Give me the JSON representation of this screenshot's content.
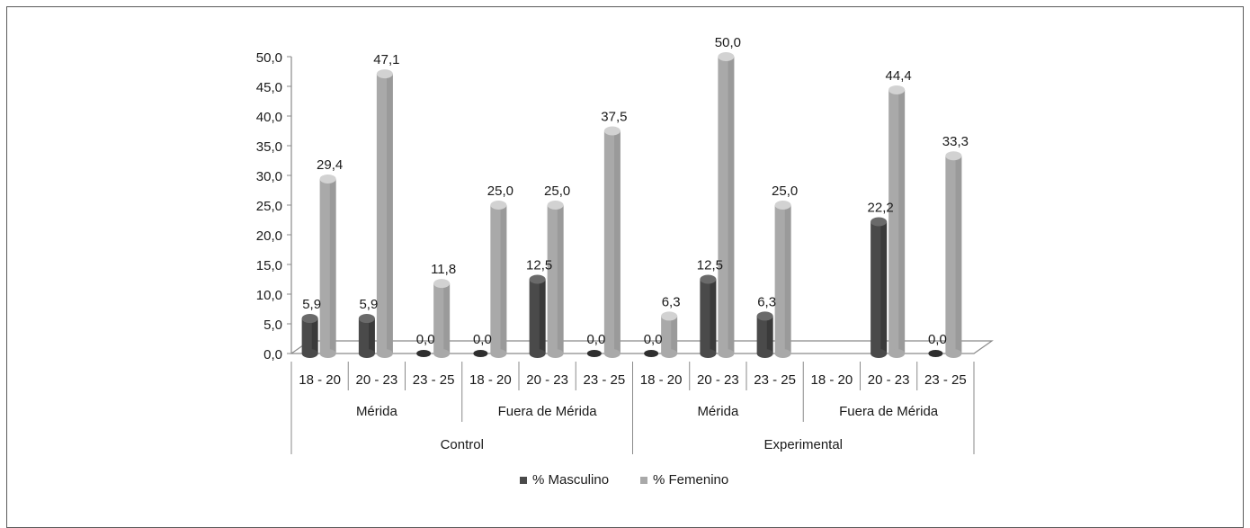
{
  "chart_data": {
    "type": "bar",
    "title": "",
    "xlabel": "",
    "ylabel": "",
    "ylim": [
      0,
      50
    ],
    "y_ticks": [
      "0,0",
      "5,0",
      "10,0",
      "15,0",
      "20,0",
      "25,0",
      "30,0",
      "35,0",
      "40,0",
      "45,0",
      "50,0"
    ],
    "categories": [
      "18 - 20",
      "20 - 23",
      "23 - 25",
      "18 - 20",
      "20 - 23",
      "23 - 25",
      "18 - 20",
      "20 - 23",
      "23 - 25",
      "18 - 20",
      "20 - 23",
      "23 - 25"
    ],
    "category_groups": [
      {
        "label": "Mérida",
        "count": 3
      },
      {
        "label": "Fuera de Mérida",
        "count": 3
      },
      {
        "label": "Mérida",
        "count": 3
      },
      {
        "label": "Fuera de Mérida",
        "count": 3
      }
    ],
    "outer_groups": [
      {
        "label": "Control",
        "count": 6
      },
      {
        "label": "Experimental",
        "count": 6
      }
    ],
    "series": [
      {
        "name": "% Masculino",
        "color": "#4a4a4a",
        "values": [
          5.9,
          5.9,
          0.0,
          0.0,
          12.5,
          0.0,
          0.0,
          12.5,
          6.3,
          null,
          22.2,
          0.0
        ],
        "labels": [
          "5,9",
          "5,9",
          "0,0",
          "0,0",
          "12,5",
          "0,0",
          "0,0",
          "12,5",
          "6,3",
          "",
          "22,2",
          "0,0"
        ]
      },
      {
        "name": "% Femenino",
        "color": "#a9a9a9",
        "values": [
          29.4,
          47.1,
          11.8,
          25.0,
          25.0,
          37.5,
          6.3,
          50.0,
          25.0,
          null,
          44.4,
          33.3
        ],
        "labels": [
          "29,4",
          "47,1",
          "11,8",
          "25,0",
          "25,0",
          "37,5",
          "6,3",
          "50,0",
          "25,0",
          "",
          "44,4",
          "33,3"
        ]
      }
    ],
    "legend_position": "bottom",
    "grid": false
  }
}
